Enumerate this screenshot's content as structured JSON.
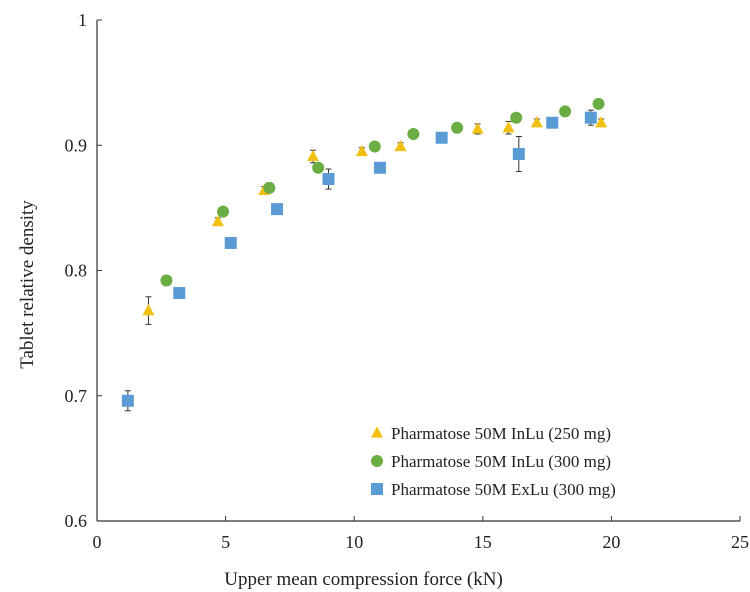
{
  "chart_data": {
    "type": "scatter",
    "xlabel": "Upper mean compression force (kN)",
    "ylabel": "Tablet relative density",
    "xlim": [
      0,
      25
    ],
    "ylim": [
      0.6,
      1.0
    ],
    "x_ticks": [
      "0",
      "5",
      "10",
      "15",
      "20",
      "25"
    ],
    "y_ticks": [
      "0.6",
      "0.7",
      "0.8",
      "0.9",
      "1"
    ],
    "grid": false,
    "legend_position": "bottom-right",
    "series": [
      {
        "name": "Pharmatose 50M InLu (250 mg)",
        "marker": "triangle",
        "color": "#f2c011",
        "points": [
          {
            "x": 2.0,
            "y": 0.768,
            "err": 0.011
          },
          {
            "x": 4.7,
            "y": 0.839,
            "err": 0.003
          },
          {
            "x": 6.5,
            "y": 0.864,
            "err": 0.003
          },
          {
            "x": 8.4,
            "y": 0.891,
            "err": 0.005
          },
          {
            "x": 10.3,
            "y": 0.895,
            "err": 0.003
          },
          {
            "x": 11.8,
            "y": 0.899,
            "err": 0.003
          },
          {
            "x": 14.8,
            "y": 0.913,
            "err": 0.004
          },
          {
            "x": 16.0,
            "y": 0.914,
            "err": 0.005
          },
          {
            "x": 17.1,
            "y": 0.918,
            "err": 0.003
          },
          {
            "x": 19.6,
            "y": 0.918,
            "err": 0.003
          }
        ]
      },
      {
        "name": "Pharmatose 50M InLu (300 mg)",
        "marker": "circle",
        "color": "#6aad42",
        "points": [
          {
            "x": 2.7,
            "y": 0.792,
            "err": 0.004
          },
          {
            "x": 4.9,
            "y": 0.847,
            "err": 0.003
          },
          {
            "x": 6.7,
            "y": 0.866,
            "err": 0.004
          },
          {
            "x": 8.6,
            "y": 0.882,
            "err": 0.003
          },
          {
            "x": 10.8,
            "y": 0.899,
            "err": 0.003
          },
          {
            "x": 12.3,
            "y": 0.909,
            "err": 0.003
          },
          {
            "x": 14.0,
            "y": 0.914,
            "err": 0.003
          },
          {
            "x": 16.3,
            "y": 0.922,
            "err": 0.003
          },
          {
            "x": 18.2,
            "y": 0.927,
            "err": 0.003
          },
          {
            "x": 19.5,
            "y": 0.933,
            "err": 0.003
          }
        ]
      },
      {
        "name": "Pharmatose 50M ExLu (300 mg)",
        "marker": "square",
        "color": "#5b9bd5",
        "points": [
          {
            "x": 1.2,
            "y": 0.696,
            "err": 0.008
          },
          {
            "x": 3.2,
            "y": 0.782,
            "err": 0.004
          },
          {
            "x": 5.2,
            "y": 0.822,
            "err": 0.003
          },
          {
            "x": 7.0,
            "y": 0.849,
            "err": 0.003
          },
          {
            "x": 9.0,
            "y": 0.873,
            "err": 0.008
          },
          {
            "x": 11.0,
            "y": 0.882,
            "err": 0.002
          },
          {
            "x": 13.4,
            "y": 0.906,
            "err": 0.003
          },
          {
            "x": 16.4,
            "y": 0.893,
            "err": 0.014
          },
          {
            "x": 17.7,
            "y": 0.918,
            "err": 0.002
          },
          {
            "x": 19.2,
            "y": 0.922,
            "err": 0.006
          }
        ]
      }
    ]
  }
}
